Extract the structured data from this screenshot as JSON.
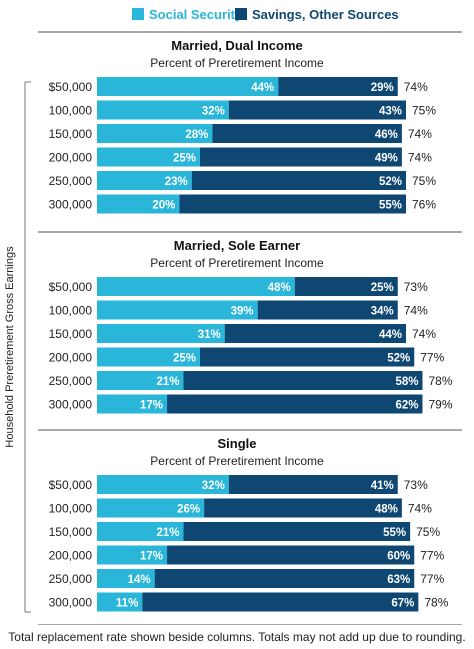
{
  "colors": {
    "social_security": "#29b6d8",
    "savings": "#0f4773",
    "divider": "#555555",
    "bar_text": "#ffffff"
  },
  "legend": [
    {
      "label": "Social Security",
      "color": "#29b6d8"
    },
    {
      "label": "Savings, Other Sources",
      "color": "#0f4773"
    }
  ],
  "axis_label": "Household Preretirement Gross Earnings",
  "footnote": "Total replacement rate shown beside columns. Totals may not add up due to rounding.",
  "chart_data": [
    {
      "type": "bar",
      "stacked": true,
      "orientation": "horizontal",
      "title": "Married, Dual Income",
      "subtitle": "Percent of Preretirement Income",
      "categories": [
        "$50,000",
        "100,000",
        "150,000",
        "200,000",
        "250,000",
        "300,000"
      ],
      "series": [
        {
          "name": "Social Security",
          "values": [
            44,
            32,
            28,
            25,
            23,
            20
          ],
          "labels": [
            "44%",
            "32%",
            "28%",
            "25%",
            "23%",
            "20%"
          ]
        },
        {
          "name": "Savings, Other Sources",
          "values": [
            29,
            43,
            46,
            49,
            52,
            55
          ],
          "labels": [
            "29%",
            "43%",
            "46%",
            "49%",
            "52%",
            "55%"
          ]
        }
      ],
      "totals": [
        "74%",
        "75%",
        "74%",
        "74%",
        "75%",
        "76%"
      ],
      "ylabel": "Household Preretirement Gross Earnings",
      "xlim": [
        0,
        100
      ]
    },
    {
      "type": "bar",
      "stacked": true,
      "orientation": "horizontal",
      "title": "Married, Sole Earner",
      "subtitle": "Percent of Preretirement Income",
      "categories": [
        "$50,000",
        "100,000",
        "150,000",
        "200,000",
        "250,000",
        "300,000"
      ],
      "series": [
        {
          "name": "Social Security",
          "values": [
            48,
            39,
            31,
            25,
            21,
            17
          ],
          "labels": [
            "48%",
            "39%",
            "31%",
            "25%",
            "21%",
            "17%"
          ]
        },
        {
          "name": "Savings, Other Sources",
          "values": [
            25,
            34,
            44,
            52,
            58,
            62
          ],
          "labels": [
            "25%",
            "34%",
            "44%",
            "52%",
            "58%",
            "62%"
          ]
        }
      ],
      "totals": [
        "73%",
        "74%",
        "74%",
        "77%",
        "78%",
        "79%"
      ],
      "ylabel": "Household Preretirement Gross Earnings",
      "xlim": [
        0,
        100
      ]
    },
    {
      "type": "bar",
      "stacked": true,
      "orientation": "horizontal",
      "title": "Single",
      "subtitle": "Percent of Preretirement Income",
      "categories": [
        "$50,000",
        "100,000",
        "150,000",
        "200,000",
        "250,000",
        "300,000"
      ],
      "series": [
        {
          "name": "Social Security",
          "values": [
            32,
            26,
            21,
            17,
            14,
            11
          ],
          "labels": [
            "32%",
            "26%",
            "21%",
            "17%",
            "14%",
            "11%"
          ]
        },
        {
          "name": "Savings, Other Sources",
          "values": [
            41,
            48,
            55,
            60,
            63,
            67
          ],
          "labels": [
            "41%",
            "48%",
            "55%",
            "60%",
            "63%",
            "67%"
          ]
        }
      ],
      "totals": [
        "73%",
        "74%",
        "75%",
        "77%",
        "77%",
        "78%"
      ],
      "ylabel": "Household Preretirement Gross Earnings",
      "xlim": [
        0,
        100
      ]
    }
  ]
}
